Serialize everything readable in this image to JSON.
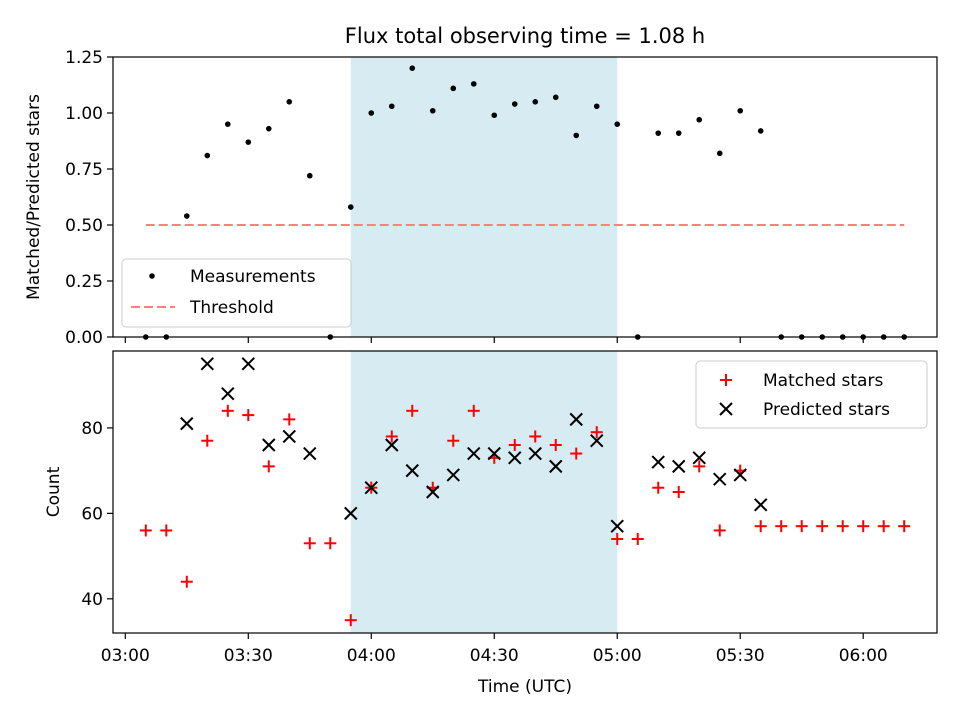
{
  "chart_data": {
    "title": "Flux total observing time = 1.08 h",
    "xlabel": "Time (UTC)",
    "x_minutes_from_0300": [
      5,
      10,
      15,
      20,
      25,
      30,
      35,
      40,
      45,
      50,
      55,
      60,
      65,
      70,
      75,
      80,
      85,
      90,
      95,
      100,
      105,
      110,
      115,
      120,
      125,
      130,
      135,
      140,
      145,
      150,
      155,
      160,
      165,
      170,
      175,
      180,
      185,
      190
    ],
    "x_ticks": [
      {
        "min": 0,
        "label": "03:00"
      },
      {
        "min": 30,
        "label": "03:30"
      },
      {
        "min": 60,
        "label": "04:00"
      },
      {
        "min": 90,
        "label": "04:30"
      },
      {
        "min": 120,
        "label": "05:00"
      },
      {
        "min": 150,
        "label": "05:30"
      },
      {
        "min": 180,
        "label": "06:00"
      }
    ],
    "xlim_minutes": [
      -3,
      198
    ],
    "shaded_span_minutes": [
      55,
      120
    ],
    "shade_color": "#add8e6",
    "top": {
      "type": "scatter",
      "ylabel": "Matched/Predicted stars",
      "ylim": [
        0,
        1.25
      ],
      "y_ticks": [
        "0.00",
        "0.25",
        "0.50",
        "0.75",
        "1.00",
        "1.25"
      ],
      "series": [
        {
          "name": "Measurements",
          "color": "#000000",
          "values": [
            0,
            0,
            0.54,
            0.81,
            0.95,
            0.87,
            0.93,
            1.05,
            0.72,
            0,
            0.58,
            1.0,
            1.03,
            1.2,
            1.01,
            1.11,
            1.13,
            0.99,
            1.04,
            1.05,
            1.07,
            0.9,
            1.03,
            0.95,
            0,
            0.91,
            0.91,
            0.97,
            0.82,
            1.01,
            0.92,
            0,
            0,
            0,
            0,
            0,
            0,
            0
          ]
        }
      ],
      "threshold": {
        "name": "Threshold",
        "value": 0.5,
        "x_from": 5,
        "x_to": 190,
        "color": "#ff7f7f"
      },
      "legend": [
        "Measurements",
        "Threshold"
      ],
      "legend_position": "lower-left"
    },
    "bottom": {
      "type": "scatter",
      "ylabel": "Count",
      "ylim": [
        32,
        98
      ],
      "y_ticks": [
        "40",
        "60",
        "80"
      ],
      "series": [
        {
          "name": "Matched stars",
          "marker": "+",
          "color": "#ff0000",
          "values": [
            56,
            56,
            44,
            77,
            84,
            83,
            71,
            82,
            53,
            53,
            35,
            66,
            78,
            84,
            66,
            77,
            84,
            73,
            76,
            78,
            76,
            74,
            79,
            54,
            54,
            66,
            65,
            71,
            56,
            70,
            57,
            57,
            57,
            57,
            57,
            57,
            57,
            57
          ]
        },
        {
          "name": "Predicted stars",
          "marker": "x",
          "color": "#000000",
          "values": [
            null,
            null,
            81,
            95,
            88,
            95,
            76,
            78,
            74,
            null,
            60,
            66,
            76,
            70,
            65,
            69,
            74,
            74,
            73,
            74,
            71,
            82,
            77,
            57,
            null,
            72,
            71,
            73,
            68,
            69,
            62,
            null,
            null,
            null,
            null,
            null,
            null,
            null
          ]
        }
      ],
      "legend": [
        "Matched stars",
        "Predicted stars"
      ],
      "legend_position": "top-right"
    }
  }
}
